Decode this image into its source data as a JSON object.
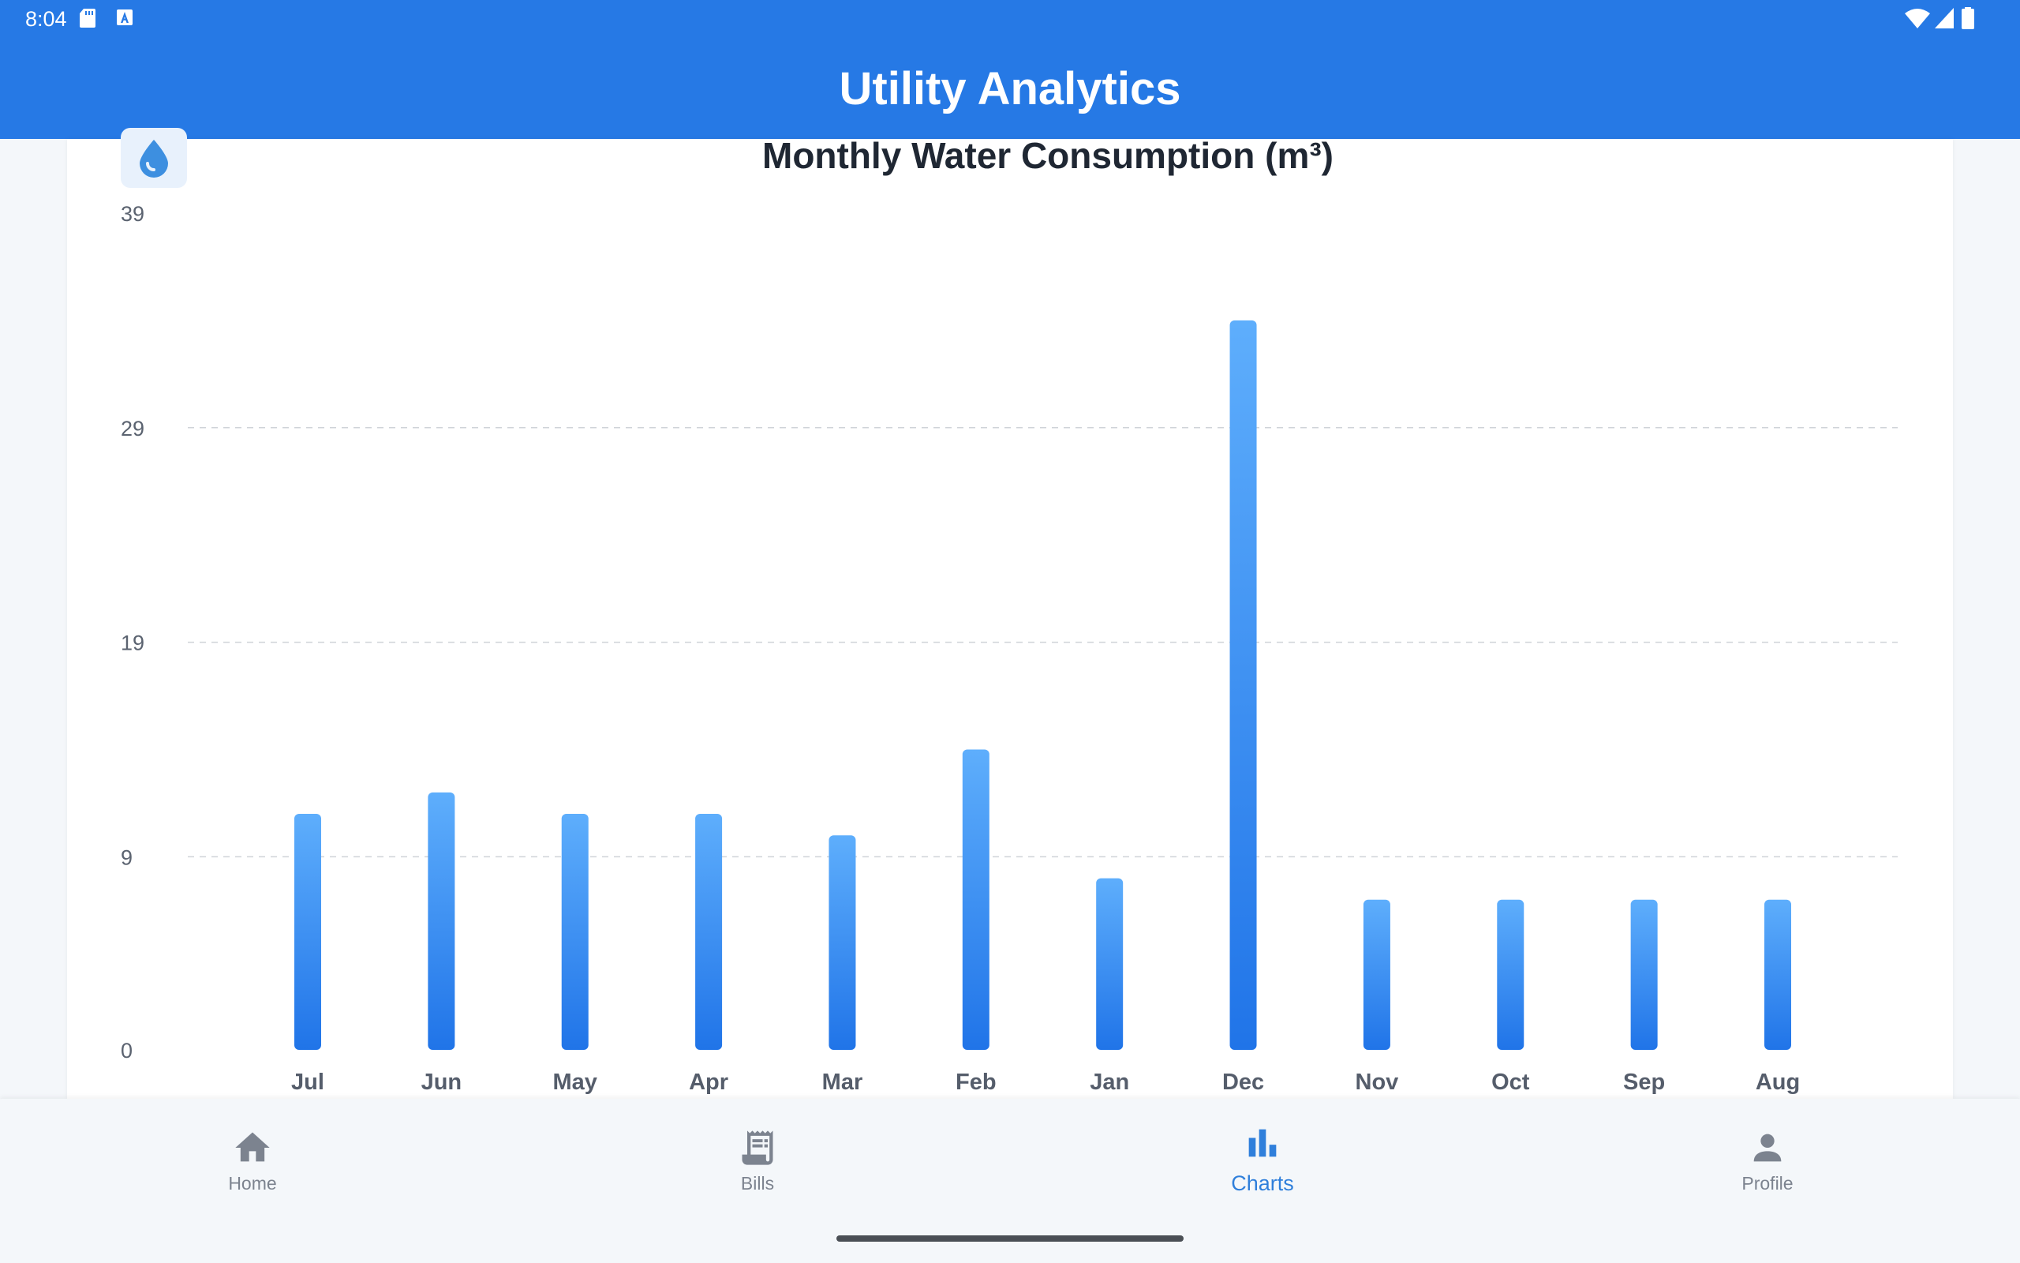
{
  "status_bar": {
    "time": "8:04",
    "left_icons": [
      "sd-card-icon",
      "keyboard-a-icon"
    ],
    "right_icons": [
      "wifi-icon",
      "signal-icon",
      "battery-icon"
    ]
  },
  "app_bar": {
    "title": "Utility Analytics",
    "color": "#2679e5"
  },
  "card": {
    "icon": "water-drop-icon",
    "chart_title": "Monthly Water Consumption (m³)"
  },
  "chart_data": {
    "type": "bar",
    "title": "Monthly Water Consumption (m³)",
    "xlabel": "",
    "ylabel": "",
    "categories": [
      "Jul",
      "Jun",
      "May",
      "Apr",
      "Mar",
      "Feb",
      "Jan",
      "Dec",
      "Nov",
      "Oct",
      "Sep",
      "Aug"
    ],
    "values": [
      11,
      12,
      11,
      11,
      10,
      14,
      8,
      34,
      7,
      7,
      7,
      7
    ],
    "ylim": [
      0,
      39
    ],
    "yticks": [
      0,
      9,
      19,
      29,
      39
    ],
    "grid": "horizontal dashed",
    "bar_color_top": "#5eaefc",
    "bar_color_bottom": "#2074e8"
  },
  "bottom_nav": {
    "items": [
      {
        "label": "Home",
        "icon": "home-icon",
        "active": false
      },
      {
        "label": "Bills",
        "icon": "receipt-icon",
        "active": false
      },
      {
        "label": "Charts",
        "icon": "bar-chart-icon",
        "active": true
      },
      {
        "label": "Profile",
        "icon": "person-icon",
        "active": false
      }
    ],
    "active_color": "#2f7fdb",
    "inactive_color": "#7c838f"
  }
}
